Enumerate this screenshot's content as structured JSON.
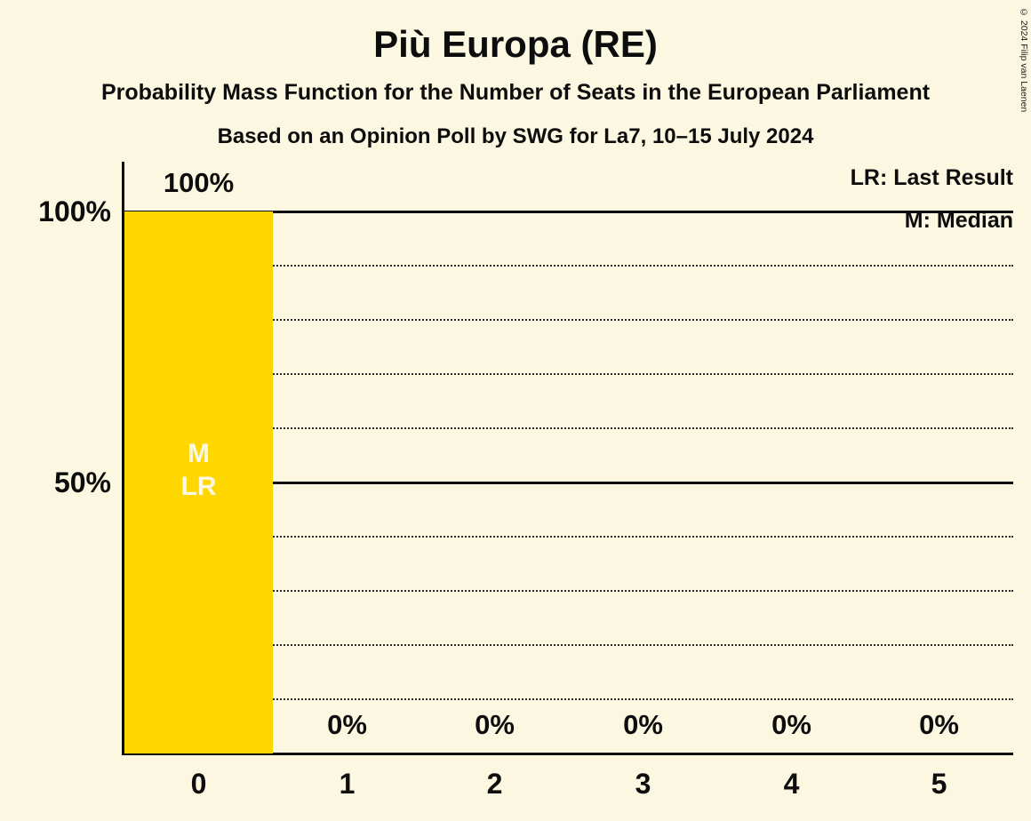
{
  "title": "Più Europa (RE)",
  "subtitle": "Probability Mass Function for the Number of Seats in the European Parliament",
  "poll_details": "Based on an Opinion Poll by SWG for La7, 10–15 July 2024",
  "copyright": "© 2024 Filip van Laenen",
  "legend": {
    "last_result": "LR: Last Result",
    "median": "M: Median"
  },
  "y_axis": {
    "label_100": "100%",
    "label_50": "50%"
  },
  "bar_annotation": {
    "median": "M",
    "last_result": "LR"
  },
  "colors": {
    "background": "#FCF7E1",
    "bar": "#FFD700",
    "text": "#0D0D0D",
    "bar_label_text": "#FCF7E1"
  },
  "chart_data": {
    "type": "bar",
    "title": "Più Europa (RE)",
    "categories": [
      "0",
      "1",
      "2",
      "3",
      "4",
      "5"
    ],
    "values": [
      100,
      0,
      0,
      0,
      0,
      0
    ],
    "value_labels": [
      "100%",
      "0%",
      "0%",
      "0%",
      "0%",
      "0%"
    ],
    "ylabel": "",
    "xlabel": "",
    "ylim": [
      0,
      100
    ],
    "y_tick_labels_shown": [
      "100%",
      "50%"
    ],
    "gridlines": {
      "solid_percent": [
        100,
        50
      ],
      "dotted_percent": [
        90,
        80,
        70,
        60,
        40,
        30,
        20,
        10
      ]
    },
    "legend_position": "top-right",
    "median_seats": 0,
    "last_result_seats": 0
  }
}
